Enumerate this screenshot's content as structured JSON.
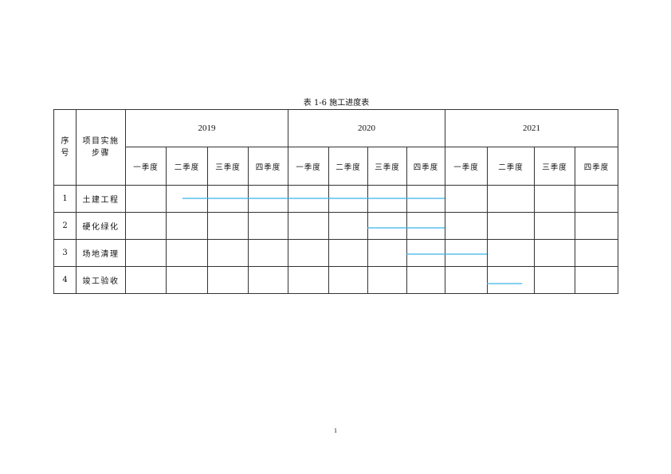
{
  "caption": "表 1-6  施工进度表",
  "header": {
    "index": "序号",
    "step": "项目实施步骤"
  },
  "years": [
    "2019",
    "2020",
    "2021"
  ],
  "quarters": [
    "一季度",
    "二季度",
    "三季度",
    "四季度"
  ],
  "rows": [
    {
      "no": "1",
      "name": "土建工程",
      "start_quarter": 1.4,
      "end_quarter": 8.0
    },
    {
      "no": "2",
      "name": "硬化绿化",
      "start_quarter": 6.0,
      "end_quarter": 8.0
    },
    {
      "no": "3",
      "name": "场地清理",
      "start_quarter": 7.0,
      "end_quarter": 9.0
    },
    {
      "no": "4",
      "name": "竣工验收",
      "start_quarter": 9.0,
      "end_quarter": 9.75
    }
  ],
  "bar_color": "#3bb3e6",
  "page_number": "1"
}
